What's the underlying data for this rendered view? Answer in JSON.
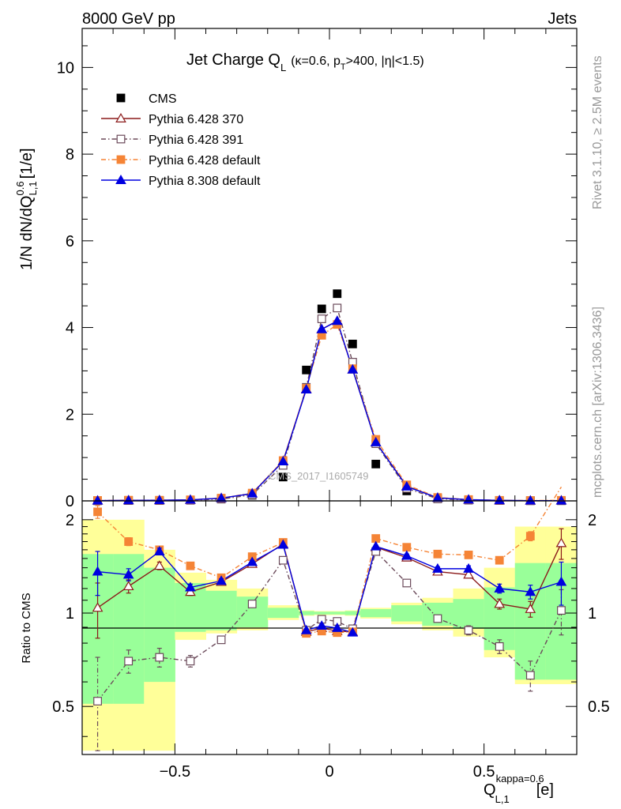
{
  "header": {
    "left": "8000 GeV pp",
    "right": "Jets",
    "rivet": "Rivet 3.1.10, ≥ 2.5M events",
    "mcplots": "mcplots.cern.ch [arXiv:1306.3436]",
    "watermark": "CMS_2017_I1605749"
  },
  "title": {
    "main": "Jet Charge Q",
    "main_sub": "L",
    "cut_a": "(κ=0.6, p",
    "cut_a_sub": "T",
    "cut_b": ">400, |η|<1.5)"
  },
  "axes": {
    "y_main_label": "1/N dN/dQ",
    "y_main_sup": "0.6",
    "y_main_sub": "L,1",
    "y_main_unit": "[1/e]",
    "y_ratio_label": "Ratio to CMS",
    "x_label": "Q",
    "x_sup": "kappa=0.6",
    "x_sub": "L,1",
    "x_unit": "[e]"
  },
  "colors": {
    "cms": "#000000",
    "py370": "#8b1a1a",
    "py391": "#6b4a5a",
    "py6def": "#f58436",
    "py8def": "#0000e0",
    "band_inner": "#99ff99",
    "band_outer": "#ffff99"
  },
  "chart_data": [
    {
      "type": "scatter",
      "panel": "main",
      "xlim": [
        -0.8,
        0.8
      ],
      "ylim": [
        0,
        10.9
      ],
      "x_ticks": [
        -0.5,
        0,
        0.5
      ],
      "y_ticks": [
        0,
        2,
        4,
        6,
        8,
        10
      ],
      "x": [
        -0.75,
        -0.65,
        -0.55,
        -0.45,
        -0.35,
        -0.25,
        -0.15,
        -0.075,
        -0.025,
        0.025,
        0.075,
        0.15,
        0.25,
        0.35,
        0.45,
        0.55,
        0.65,
        0.75
      ],
      "legend_placement": "top-left",
      "series": [
        {
          "name": "CMS",
          "key": "cms",
          "marker": "square-filled",
          "style": "none",
          "values": [
            0.005,
            0.01,
            0.01,
            0.02,
            0.05,
            0.13,
            0.55,
            3.02,
            4.43,
            4.78,
            3.62,
            0.85,
            0.23,
            0.05,
            0.02,
            0.01,
            0.005,
            0.005
          ]
        },
        {
          "name": "Pythia 6.428 370",
          "key": "py370",
          "marker": "triangle-open",
          "style": "solid",
          "values": [
            0.005,
            0.012,
            0.014,
            0.023,
            0.063,
            0.17,
            0.92,
            2.58,
            3.96,
            4.15,
            3.03,
            1.35,
            0.34,
            0.07,
            0.027,
            0.011,
            0.005,
            0.008
          ]
        },
        {
          "name": "Pythia 6.428 391",
          "key": "py391",
          "marker": "square-open",
          "style": "dashdot",
          "values": [
            0.003,
            0.007,
            0.007,
            0.014,
            0.041,
            0.14,
            0.82,
            2.62,
            4.2,
            4.45,
            3.2,
            1.32,
            0.29,
            0.048,
            0.018,
            0.008,
            0.003,
            0.005
          ]
        },
        {
          "name": "Pythia 6.428 default",
          "key": "py6def",
          "marker": "square-filled",
          "style": "dashdot",
          "values": [
            0.011,
            0.017,
            0.016,
            0.025,
            0.064,
            0.18,
            0.93,
            2.6,
            3.82,
            4.07,
            3.05,
            1.42,
            0.37,
            0.079,
            0.031,
            0.013,
            0.009,
            0.013
          ]
        },
        {
          "name": "Pythia 8.308 default",
          "key": "py8def",
          "marker": "triangle-filled",
          "style": "solid",
          "values": [
            0.007,
            0.013,
            0.015,
            0.024,
            0.063,
            0.17,
            0.91,
            2.57,
            3.96,
            4.15,
            3.03,
            1.35,
            0.33,
            0.07,
            0.028,
            0.012,
            0.006,
            0.006
          ]
        }
      ]
    },
    {
      "type": "line",
      "panel": "ratio",
      "xlim": [
        -0.8,
        0.8
      ],
      "ylim": [
        0.35,
        2.3
      ],
      "y_ticks": [
        0.5,
        1,
        2
      ],
      "x": [
        -0.75,
        -0.65,
        -0.55,
        -0.45,
        -0.35,
        -0.25,
        -0.15,
        -0.075,
        -0.025,
        0.025,
        0.075,
        0.15,
        0.25,
        0.35,
        0.45,
        0.55,
        0.65,
        0.75
      ],
      "bands": {
        "edges": [
          -0.8,
          -0.7,
          -0.6,
          -0.5,
          -0.4,
          -0.3,
          -0.2,
          -0.1,
          -0.05,
          0,
          0.05,
          0.1,
          0.2,
          0.3,
          0.4,
          0.5,
          0.6,
          0.7,
          0.8
        ],
        "inner_lo": [
          0.51,
          0.51,
          0.6,
          0.87,
          0.88,
          0.9,
          0.965,
          0.985,
          0.99,
          0.99,
          0.985,
          0.97,
          0.94,
          0.91,
          0.89,
          0.76,
          0.61,
          0.61
        ],
        "inner_hi": [
          1.55,
          1.55,
          1.4,
          1.25,
          1.18,
          1.13,
          1.04,
          1.015,
          1.01,
          1.01,
          1.015,
          1.03,
          1.06,
          1.08,
          1.11,
          1.21,
          1.45,
          1.45
        ],
        "outer_lo": [
          0.36,
          0.36,
          0.36,
          0.82,
          0.86,
          0.88,
          0.95,
          0.98,
          0.985,
          0.985,
          0.98,
          0.96,
          0.92,
          0.88,
          0.84,
          0.72,
          0.59,
          0.59
        ],
        "outer_hi": [
          2.0,
          2.0,
          1.6,
          1.35,
          1.28,
          1.2,
          1.06,
          1.02,
          1.015,
          1.015,
          1.02,
          1.04,
          1.08,
          1.12,
          1.2,
          1.4,
          1.9,
          1.9
        ]
      },
      "series": [
        {
          "name": "Pythia 6.428 370",
          "key": "py370",
          "marker": "triangle-open",
          "style": "solid",
          "values": [
            1.04,
            1.22,
            1.42,
            1.17,
            1.26,
            1.44,
            1.67,
            0.87,
            0.895,
            0.875,
            0.87,
            1.63,
            1.51,
            1.36,
            1.33,
            1.07,
            1.03,
            1.68
          ],
          "err": [
            0.21,
            0.06,
            0.04,
            0.03,
            0.02,
            0.02,
            0.01,
            0.01,
            0.01,
            0.01,
            0.01,
            0.01,
            0.02,
            0.02,
            0.03,
            0.04,
            0.06,
            0.19
          ]
        },
        {
          "name": "Pythia 6.428 391",
          "key": "py391",
          "marker": "square-open",
          "style": "dashdot",
          "values": [
            0.52,
            0.7,
            0.72,
            0.7,
            0.82,
            1.07,
            1.48,
            0.88,
            0.955,
            0.94,
            0.89,
            1.58,
            1.25,
            0.96,
            0.88,
            0.78,
            0.63,
            1.02
          ],
          "err": [
            0.2,
            0.06,
            0.05,
            0.03,
            0.02,
            0.02,
            0.01,
            0.01,
            0.01,
            0.01,
            0.01,
            0.01,
            0.02,
            0.02,
            0.03,
            0.04,
            0.07,
            0.17
          ]
        },
        {
          "name": "Pythia 6.428 default",
          "key": "py6def",
          "marker": "square-filled",
          "style": "dashdot",
          "values": [
            2.12,
            1.7,
            1.6,
            1.42,
            1.3,
            1.52,
            1.69,
            0.86,
            0.875,
            0.865,
            0.87,
            1.74,
            1.63,
            1.55,
            1.54,
            1.48,
            1.77,
            2.55
          ],
          "err": [
            0.1,
            0.05,
            0.04,
            0.03,
            0.02,
            0.02,
            0.01,
            0.01,
            0.01,
            0.01,
            0.01,
            0.01,
            0.02,
            0.02,
            0.03,
            0.04,
            0.06,
            0.1
          ]
        },
        {
          "name": "Pythia 8.308 default",
          "key": "py8def",
          "marker": "triangle-filled",
          "style": "solid",
          "values": [
            1.36,
            1.33,
            1.58,
            1.21,
            1.27,
            1.46,
            1.66,
            0.88,
            0.91,
            0.895,
            0.865,
            1.64,
            1.53,
            1.39,
            1.39,
            1.2,
            1.17,
            1.26
          ],
          "err": [
            0.22,
            0.06,
            0.04,
            0.03,
            0.02,
            0.02,
            0.01,
            0.01,
            0.01,
            0.01,
            0.01,
            0.01,
            0.02,
            0.02,
            0.03,
            0.04,
            0.06,
            0.2
          ]
        }
      ]
    }
  ]
}
